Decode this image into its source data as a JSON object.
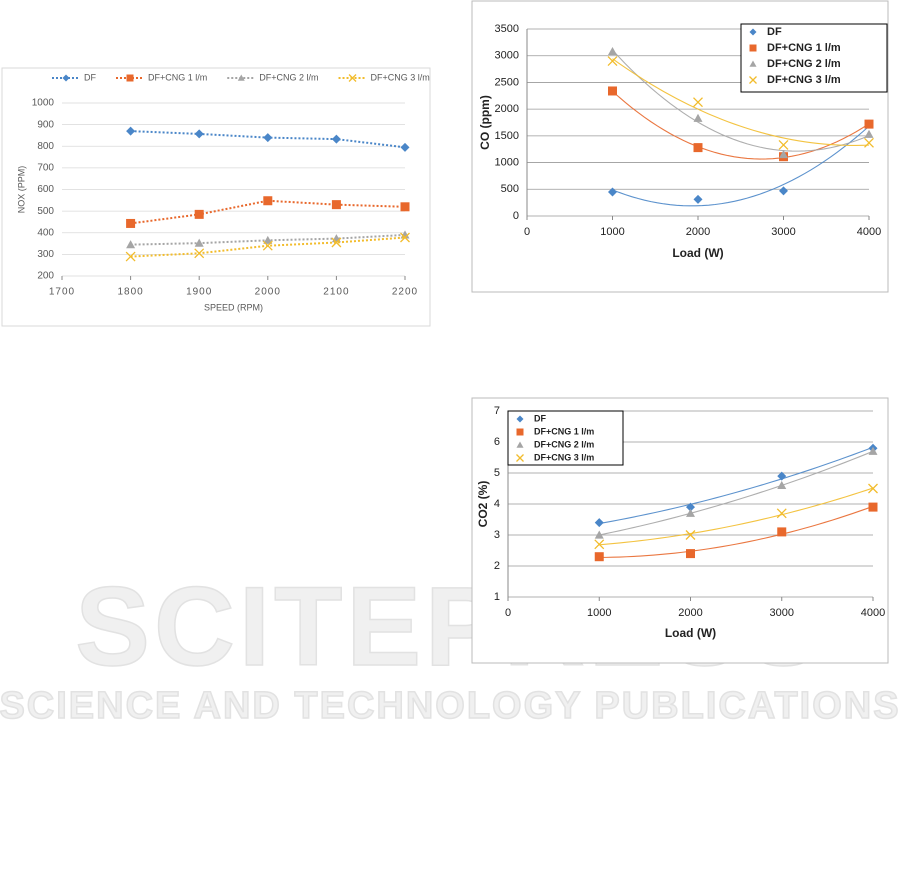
{
  "chart_data": [
    {
      "type": "line",
      "line_style": "dotted",
      "legend": "top",
      "grid": true,
      "xlabel": "SPEED (RPM)",
      "ylabel": "NOX (PPM)",
      "x": [
        1800,
        1900,
        2000,
        2100,
        2200
      ],
      "xlim": [
        1700,
        2200
      ],
      "xticks": [
        1700,
        1800,
        1900,
        2000,
        2100,
        2200
      ],
      "ylim": [
        200,
        1000
      ],
      "yticks": [
        200,
        300,
        400,
        500,
        600,
        700,
        800,
        900,
        1000
      ],
      "series": [
        {
          "name": "DF",
          "color": "#4a86c8",
          "marker": "diamond",
          "values": [
            870,
            857,
            840,
            833,
            795
          ]
        },
        {
          "name": "DF+CNG 1 l/m",
          "color": "#e8682c",
          "marker": "square",
          "values": [
            443,
            485,
            548,
            530,
            520
          ]
        },
        {
          "name": "DF+CNG 2 l/m",
          "color": "#a5a5a5",
          "marker": "triangle",
          "values": [
            345,
            352,
            365,
            373,
            390
          ]
        },
        {
          "name": "DF+CNG 3 l/m",
          "color": "#f2bc2c",
          "marker": "x",
          "values": [
            290,
            305,
            340,
            355,
            378
          ]
        }
      ]
    },
    {
      "type": "scatter",
      "trendline": "poly2",
      "legend": "upper right",
      "grid": true,
      "xlabel": "Load (W)",
      "ylabel": "CO (ppm)",
      "x": [
        1000,
        2000,
        3000,
        4000
      ],
      "xlim": [
        0,
        4000
      ],
      "xticks": [
        0,
        1000,
        2000,
        3000,
        4000
      ],
      "ylim": [
        0,
        3500
      ],
      "yticks": [
        0,
        500,
        1000,
        1500,
        2000,
        2500,
        3000,
        3500
      ],
      "series": [
        {
          "name": "DF",
          "color": "#4a86c8",
          "marker": "diamond",
          "values": [
            450,
            310,
            470,
            1720
          ]
        },
        {
          "name": "DF+CNG 1 l/m",
          "color": "#e8682c",
          "marker": "square",
          "values": [
            2340,
            1280,
            1110,
            1720
          ]
        },
        {
          "name": "DF+CNG 2 l/m",
          "color": "#a5a5a5",
          "marker": "triangle",
          "values": [
            3080,
            1830,
            1150,
            1530
          ]
        },
        {
          "name": "DF+CNG 3 l/m",
          "color": "#f2bc2c",
          "marker": "x",
          "values": [
            2900,
            2130,
            1330,
            1370
          ]
        }
      ]
    },
    {
      "type": "scatter",
      "trendline": "poly2",
      "legend": "upper left",
      "grid": true,
      "xlabel": "Load (W)",
      "ylabel": "CO2 (%)",
      "x": [
        1000,
        2000,
        3000,
        4000
      ],
      "xlim": [
        0,
        4000
      ],
      "xticks": [
        0,
        1000,
        2000,
        3000,
        4000
      ],
      "ylim": [
        1,
        7
      ],
      "yticks": [
        1,
        2,
        3,
        4,
        5,
        6,
        7
      ],
      "series": [
        {
          "name": "DF",
          "color": "#4a86c8",
          "marker": "diamond",
          "values": [
            3.4,
            3.9,
            4.9,
            5.8
          ]
        },
        {
          "name": "DF+CNG 1 l/m",
          "color": "#e8682c",
          "marker": "square",
          "values": [
            2.3,
            2.4,
            3.1,
            3.9
          ]
        },
        {
          "name": "DF+CNG 2 l/m",
          "color": "#a5a5a5",
          "marker": "triangle",
          "values": [
            3.0,
            3.7,
            4.6,
            5.7
          ]
        },
        {
          "name": "DF+CNG 3 l/m",
          "color": "#f2bc2c",
          "marker": "x",
          "values": [
            2.7,
            3.0,
            3.7,
            4.5
          ]
        }
      ]
    }
  ],
  "watermark": {
    "title": "SCITEPRESS",
    "subtitle": "SCIENCE AND TECHNOLOGY PUBLICATIONS"
  }
}
